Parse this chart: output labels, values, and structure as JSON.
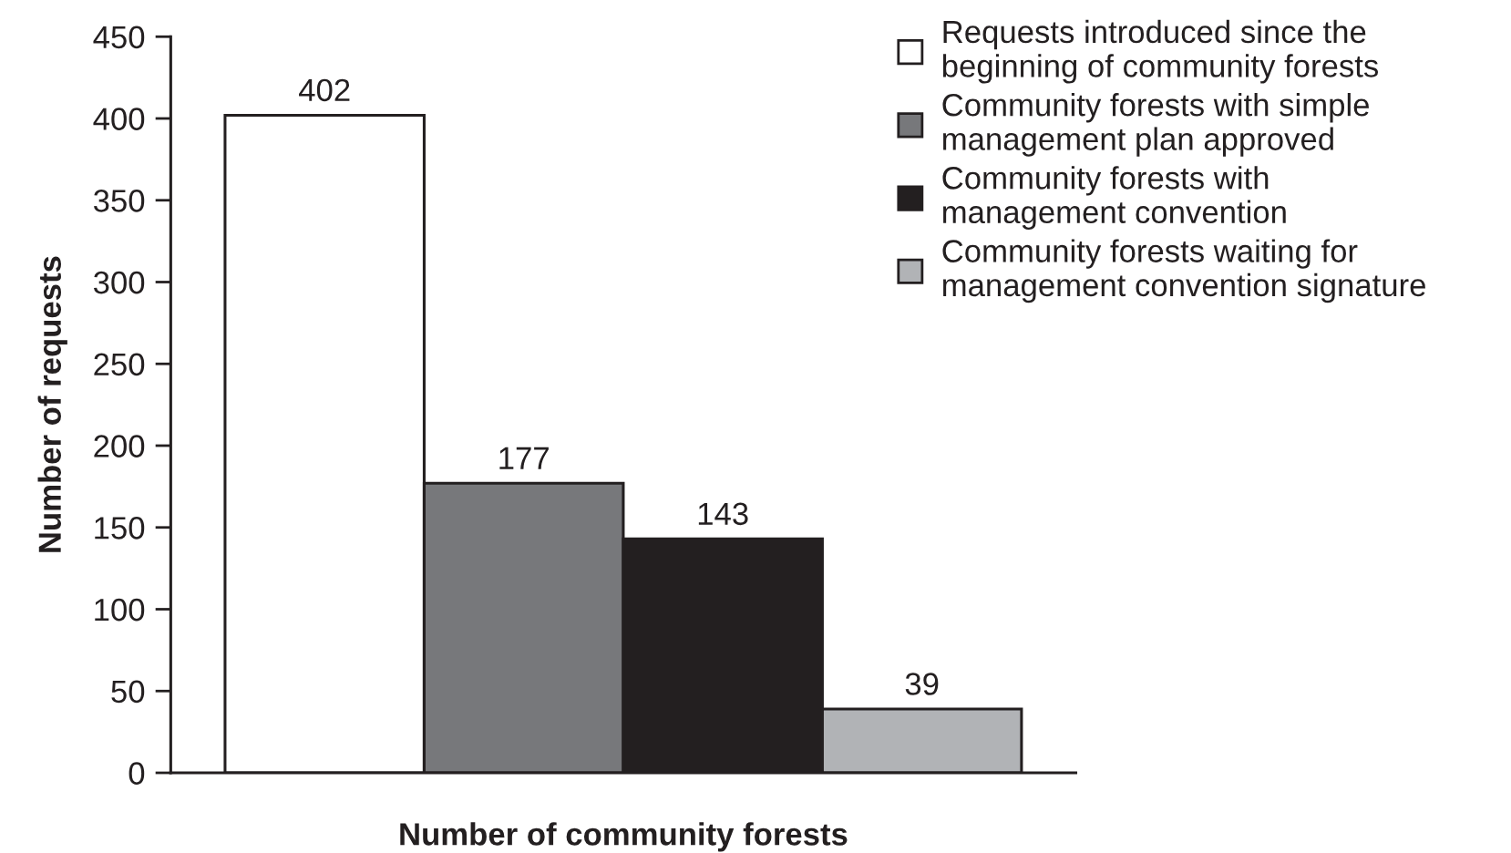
{
  "chart_data": {
    "type": "bar",
    "xlabel": "Number of community forests",
    "ylabel": "Number of requests",
    "categories": [
      null
    ],
    "series": [
      {
        "name": "Requests introduced since the\nbeginning of community forests",
        "color": "#ffffff",
        "values": [
          402
        ]
      },
      {
        "name": "Community forests with simple\nmanagement plan approved",
        "color": "#77787b",
        "values": [
          177
        ]
      },
      {
        "name": "Community forests with\nmanagement convention",
        "color": "#231f20",
        "values": [
          143
        ]
      },
      {
        "name": "Community forests waiting for\nmanagement convention signature",
        "color": "#b1b3b6",
        "values": [
          39
        ]
      }
    ],
    "ylim": [
      0,
      450
    ],
    "yticks": [
      0,
      50,
      100,
      150,
      200,
      250,
      300,
      350,
      400,
      450
    ],
    "data_labels": true,
    "legend": "top right",
    "grid": false
  }
}
